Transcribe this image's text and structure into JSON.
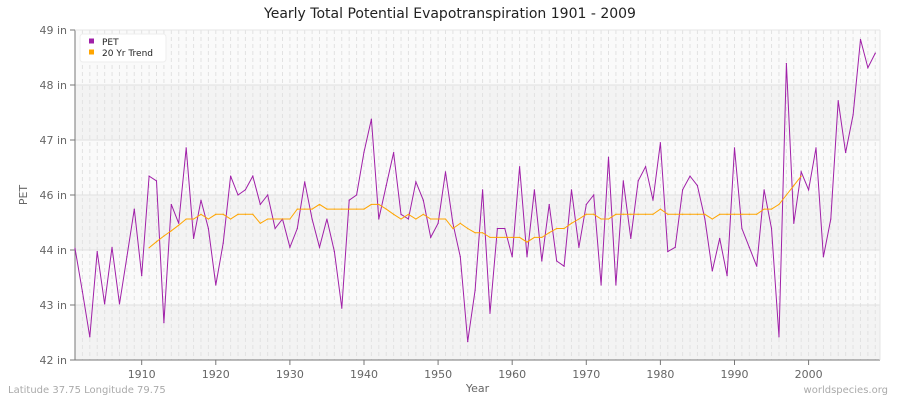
{
  "chart_data": {
    "type": "line",
    "title": "Yearly Total Potential Evapotranspiration 1901 - 2009",
    "xlabel": "Year",
    "ylabel": "PET",
    "xlim": [
      1901,
      2009
    ],
    "ylim": [
      42,
      49
    ],
    "x_ticks": [
      1910,
      1920,
      1930,
      1940,
      1950,
      1960,
      1970,
      1980,
      1990,
      2000
    ],
    "y_tick_labels": [
      "42 in",
      "43 in",
      "44 in",
      "46 in",
      "47 in",
      "48 in",
      "49 in"
    ],
    "grid": true,
    "legend_position": "top-left",
    "series": [
      {
        "name": "PET",
        "color": "#a020a8",
        "x_start": 1901,
        "values": [
          44.37,
          43.45,
          42.49,
          44.3,
          43.19,
          44.39,
          43.19,
          44.19,
          45.2,
          43.79,
          45.9,
          45.8,
          42.79,
          45.3,
          44.9,
          46.5,
          44.58,
          45.39,
          44.79,
          43.59,
          44.48,
          45.9,
          45.5,
          45.61,
          45.9,
          45.3,
          45.5,
          44.79,
          44.99,
          44.39,
          44.79,
          45.78,
          44.99,
          44.39,
          44.99,
          44.3,
          43.1,
          45.39,
          45.5,
          46.41,
          47.11,
          44.99,
          45.7,
          46.4,
          45.09,
          44.99,
          45.78,
          45.39,
          44.6,
          44.9,
          45.99,
          44.9,
          44.19,
          42.39,
          43.48,
          45.61,
          42.99,
          44.79,
          44.79,
          44.19,
          46.1,
          44.19,
          45.61,
          44.1,
          45.3,
          44.1,
          43.99,
          45.61,
          44.39,
          45.3,
          45.5,
          43.59,
          46.3,
          43.59,
          45.8,
          44.58,
          45.8,
          46.1,
          45.39,
          46.61,
          44.3,
          44.39,
          45.61,
          45.9,
          45.7,
          44.99,
          43.89,
          44.58,
          43.79,
          46.5,
          44.79,
          44.39,
          43.99,
          45.61,
          44.79,
          42.49,
          48.29,
          44.9,
          45.99,
          45.61,
          46.5,
          44.19,
          44.99,
          47.5,
          46.4,
          47.2,
          48.8,
          48.2,
          48.51
        ]
      },
      {
        "name": "20 Yr Trend",
        "color": "#ffa500",
        "x_start": 1911,
        "values": [
          44.38,
          44.51,
          44.63,
          44.74,
          44.86,
          44.99,
          44.99,
          45.09,
          44.99,
          45.09,
          45.09,
          44.99,
          45.09,
          45.09,
          45.09,
          44.9,
          44.99,
          44.99,
          44.99,
          44.99,
          45.2,
          45.2,
          45.2,
          45.3,
          45.2,
          45.2,
          45.2,
          45.2,
          45.2,
          45.2,
          45.3,
          45.3,
          45.2,
          45.09,
          44.99,
          45.09,
          44.99,
          45.09,
          44.99,
          44.99,
          44.99,
          44.79,
          44.9,
          44.79,
          44.7,
          44.7,
          44.6,
          44.6,
          44.6,
          44.6,
          44.6,
          44.5,
          44.6,
          44.6,
          44.7,
          44.79,
          44.79,
          44.9,
          44.99,
          45.09,
          45.09,
          44.99,
          44.99,
          45.09,
          45.09,
          45.09,
          45.09,
          45.09,
          45.09,
          45.2,
          45.09,
          45.09,
          45.09,
          45.09,
          45.09,
          45.09,
          44.99,
          45.09,
          45.09,
          45.09,
          45.09,
          45.09,
          45.09,
          45.2,
          45.2,
          45.3,
          45.5,
          45.7,
          45.9
        ]
      }
    ]
  },
  "footer": {
    "location": "Latitude 37.75 Longitude 79.75",
    "source": "worldspecies.org"
  }
}
